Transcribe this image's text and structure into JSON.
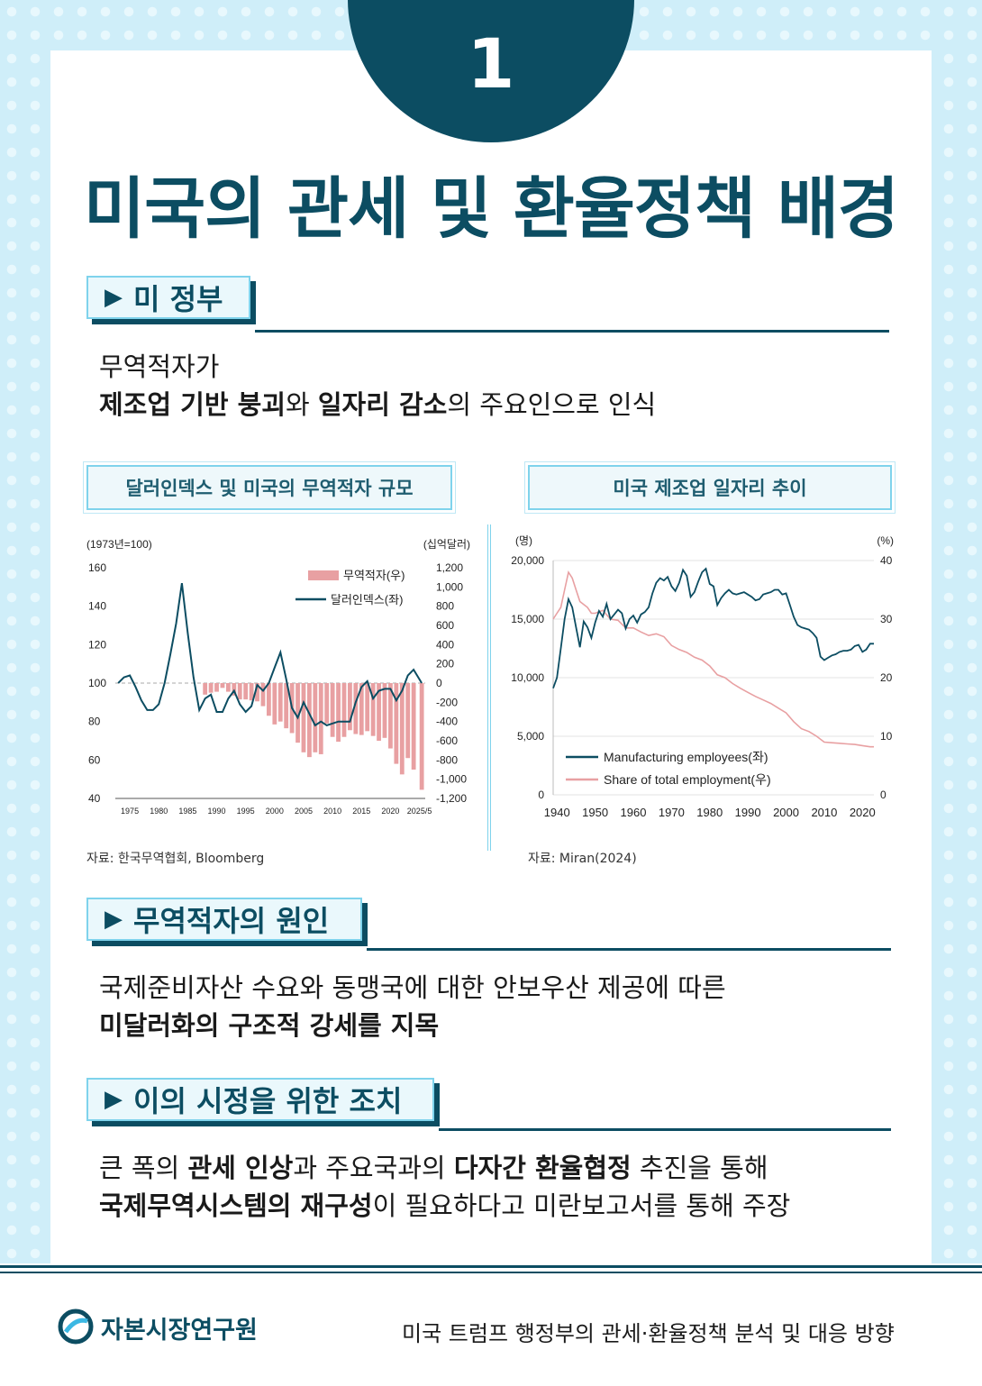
{
  "badge_number": "1",
  "title": "미국의 관세 및 환율정책 배경",
  "sections": [
    {
      "label": "미 정부"
    },
    {
      "label": "무역적자의 원인"
    },
    {
      "label": "이의 시정을 위한 조치"
    }
  ],
  "text1": {
    "line1": "무역적자가",
    "b1": "제조업 기반 붕괴",
    "t1": "와 ",
    "b2": "일자리 감소",
    "t2": "의 주요인으로 인식"
  },
  "text2": {
    "line1": "국제준비자산 수요와 동맹국에 대한 안보우산 제공에 따른",
    "line2": "미달러화의 구조적 강세를 지목"
  },
  "text3": {
    "t1": "큰 폭의 ",
    "b1": "관세 인상",
    "t2": "과 주요국과의 ",
    "b2": "다자간 환율협정",
    "t3": " 추진을 통해",
    "b3": "국제무역시스템의 재구성",
    "t4": "이 필요하다고 미란보고서를 통해 주장"
  },
  "chart_data": [
    {
      "type": "bar+line",
      "title": "달러인덱스 및 미국의 무역적자 규모",
      "left_unit": "(1973년=100)",
      "right_unit": "(십억달러)",
      "left_ylim": [
        40,
        160
      ],
      "left_ticks": [
        "160",
        "140",
        "120",
        "100",
        "80",
        "60",
        "40"
      ],
      "right_ylim": [
        -1200,
        1200
      ],
      "right_ticks": [
        "1,200",
        "1,000",
        "800",
        "600",
        "400",
        "200",
        "0",
        "-200",
        "-400",
        "-600",
        "-800",
        "-1,000",
        "-1,200"
      ],
      "x_ticks": [
        "1975",
        "1980",
        "1985",
        "1990",
        "1995",
        "2000",
        "2005",
        "2010",
        "2015",
        "2020",
        "2025/5"
      ],
      "legend": [
        "무역적자(우)",
        "달러인덱스(좌)"
      ],
      "colors": {
        "bars": "#e8a0a2",
        "line": "#0c4d62"
      },
      "series": [
        {
          "name": "달러인덱스(좌)",
          "x": [
            1973,
            1974,
            1975,
            1976,
            1977,
            1978,
            1979,
            1980,
            1981,
            1982,
            1983,
            1984,
            1985,
            1986,
            1987,
            1988,
            1989,
            1990,
            1991,
            1992,
            1993,
            1994,
            1995,
            1996,
            1997,
            1998,
            1999,
            2000,
            2001,
            2002,
            2003,
            2004,
            2005,
            2006,
            2007,
            2008,
            2009,
            2010,
            2011,
            2012,
            2013,
            2014,
            2015,
            2016,
            2017,
            2018,
            2019,
            2020,
            2021,
            2022,
            2023,
            2024,
            2025.4
          ],
          "values": [
            100,
            103,
            104,
            98,
            91,
            86,
            86,
            89,
            100,
            115,
            131,
            152,
            126,
            103,
            86,
            92,
            94,
            85,
            85,
            92,
            96,
            89,
            85,
            88,
            99,
            96,
            100,
            108,
            116,
            102,
            87,
            82,
            90,
            84,
            78,
            80,
            78,
            79,
            80,
            80,
            80,
            90,
            98,
            101,
            92,
            96,
            97,
            97,
            91,
            96,
            104,
            107,
            100
          ]
        },
        {
          "name": "무역적자(우)",
          "x": [
            1988,
            1989,
            1990,
            1991,
            1992,
            1993,
            1994,
            1995,
            1996,
            1997,
            1998,
            1999,
            2000,
            2001,
            2002,
            2003,
            2004,
            2005,
            2006,
            2007,
            2008,
            2009,
            2010,
            2011,
            2012,
            2013,
            2014,
            2015,
            2016,
            2017,
            2018,
            2019,
            2020,
            2021,
            2022,
            2023,
            2024,
            2025.4
          ],
          "values": [
            -120,
            -100,
            -90,
            -50,
            -90,
            -130,
            -170,
            -170,
            -180,
            -190,
            -240,
            -340,
            -430,
            -400,
            -470,
            -520,
            -620,
            -720,
            -770,
            -720,
            -740,
            -420,
            -560,
            -610,
            -560,
            -490,
            -530,
            -540,
            -500,
            -550,
            -600,
            -570,
            -680,
            -840,
            -950,
            -780,
            -900,
            -1110
          ]
        }
      ],
      "source": "자료: 한국무역협회, Bloomberg"
    },
    {
      "type": "line",
      "title": "미국 제조업 일자리 추이",
      "left_unit": "(명)",
      "right_unit": "(%)",
      "left_ylim": [
        0,
        20000
      ],
      "left_ticks": [
        "20,000",
        "15,000",
        "10,000",
        "5,000",
        "0"
      ],
      "right_ylim": [
        0,
        40
      ],
      "right_ticks": [
        "40",
        "30",
        "20",
        "10",
        "0"
      ],
      "x_ticks": [
        "1940",
        "1950",
        "1960",
        "1970",
        "1980",
        "1990",
        "2000",
        "2010",
        "2020"
      ],
      "xlim": [
        1939,
        2023
      ],
      "legend": [
        "Manufacturing employees(좌)",
        "Share of total employment(우)"
      ],
      "colors": {
        "employees": "#0c4d62",
        "share": "#e8a0a2"
      },
      "series": [
        {
          "name": "Manufacturing employees(좌)",
          "x": [
            1939,
            1940,
            1941,
            1942,
            1943,
            1944,
            1945,
            1946,
            1947,
            1948,
            1949,
            1950,
            1951,
            1952,
            1953,
            1954,
            1955,
            1956,
            1957,
            1958,
            1959,
            1960,
            1961,
            1962,
            1963,
            1964,
            1965,
            1966,
            1967,
            1968,
            1969,
            1970,
            1971,
            1972,
            1973,
            1974,
            1975,
            1976,
            1977,
            1978,
            1979,
            1980,
            1981,
            1982,
            1983,
            1984,
            1985,
            1986,
            1987,
            1988,
            1989,
            1990,
            1991,
            1992,
            1993,
            1994,
            1995,
            1996,
            1997,
            1998,
            1999,
            2000,
            2001,
            2002,
            2003,
            2004,
            2005,
            2006,
            2007,
            2008,
            2009,
            2010,
            2011,
            2012,
            2013,
            2014,
            2015,
            2016,
            2017,
            2018,
            2019,
            2020,
            2021,
            2022,
            2023
          ],
          "values": [
            9100,
            10000,
            12500,
            15000,
            16700,
            16000,
            14300,
            12600,
            14800,
            14300,
            13400,
            14700,
            15700,
            15200,
            16300,
            15000,
            15400,
            15800,
            15500,
            14200,
            15000,
            15300,
            14700,
            15400,
            15600,
            16000,
            17200,
            18100,
            18500,
            18300,
            18600,
            17800,
            17400,
            18100,
            19200,
            18700,
            16900,
            17300,
            18200,
            19000,
            19300,
            18000,
            17800,
            16200,
            16800,
            17200,
            17500,
            17200,
            17100,
            17200,
            17300,
            17100,
            16900,
            16600,
            16700,
            17100,
            17200,
            17300,
            17500,
            17500,
            17100,
            17200,
            16200,
            15200,
            14500,
            14300,
            14200,
            14100,
            13800,
            13400,
            11800,
            11500,
            11700,
            11900,
            12000,
            12200,
            12300,
            12300,
            12400,
            12700,
            12800,
            12200,
            12400,
            12900,
            12900
          ]
        },
        {
          "name": "Share of total employment(우)",
          "x": [
            1939,
            1940,
            1941,
            1942,
            1943,
            1944,
            1945,
            1946,
            1947,
            1948,
            1949,
            1950,
            1952,
            1954,
            1956,
            1958,
            1960,
            1962,
            1964,
            1966,
            1968,
            1970,
            1972,
            1974,
            1976,
            1978,
            1980,
            1982,
            1984,
            1986,
            1988,
            1990,
            1992,
            1994,
            1996,
            1998,
            2000,
            2002,
            2004,
            2006,
            2008,
            2010,
            2012,
            2014,
            2016,
            2018,
            2020,
            2022,
            2023
          ],
          "values": [
            30,
            31,
            32,
            35,
            38,
            37,
            35,
            33,
            32.5,
            32,
            31,
            31,
            31.5,
            30,
            29.8,
            28.5,
            28.5,
            27.8,
            27.2,
            27.5,
            27,
            25.5,
            24.8,
            24.3,
            23.5,
            23,
            22,
            20.5,
            20,
            19,
            18.2,
            17.5,
            16.8,
            16.2,
            15.6,
            14.8,
            14,
            12.5,
            11.3,
            10.8,
            10,
            9,
            8.9,
            8.8,
            8.7,
            8.6,
            8.4,
            8.2,
            8.2
          ]
        }
      ],
      "source": "자료: Miran(2024)"
    }
  ],
  "footer": {
    "org": "자본시장연구원",
    "report_title": "미국 트럼프 행정부의 관세·환율정책 분석 및 대응 방향"
  }
}
